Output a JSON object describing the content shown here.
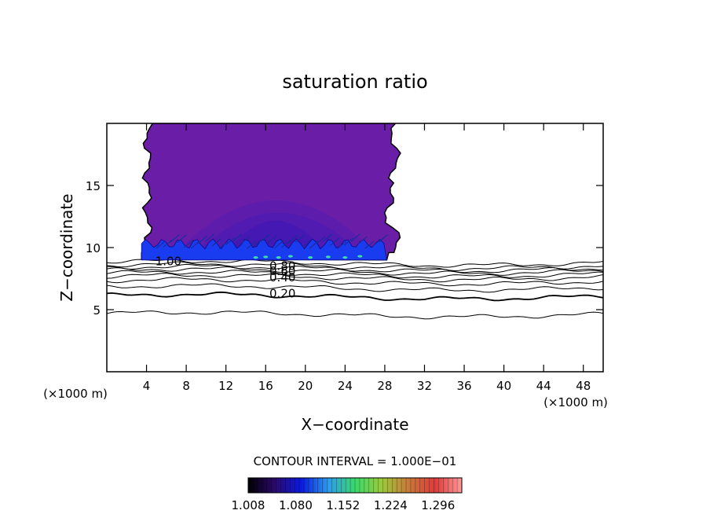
{
  "chart_data": {
    "type": "heatmap",
    "title": "saturation ratio",
    "xlabel": "X−coordinate",
    "ylabel": "Z−coordinate",
    "x_unit_left": "(×1000 m)",
    "x_unit_right": "(×1000 m)",
    "xlim": [
      0,
      50
    ],
    "ylim": [
      0,
      20
    ],
    "x_ticks": [
      4,
      8,
      12,
      16,
      20,
      24,
      28,
      32,
      36,
      40,
      44,
      48
    ],
    "y_ticks": [
      5,
      10,
      15
    ],
    "contour_interval_text": "CONTOUR INTERVAL = 1.000E−01",
    "contour_levels": [
      0.1,
      0.2,
      0.3,
      0.4,
      0.5,
      0.6,
      0.7,
      0.8,
      0.9,
      1.0
    ],
    "contour_labels": [
      {
        "text": "1.00",
        "x": 6.2,
        "y": 8.9
      },
      {
        "text": "0.80",
        "x": 17.7,
        "y": 8.5
      },
      {
        "text": "0.60",
        "x": 17.7,
        "y": 8.1
      },
      {
        "text": "0.40",
        "x": 17.7,
        "y": 7.6
      },
      {
        "text": "0.20",
        "x": 17.7,
        "y": 6.3
      }
    ],
    "plume": {
      "x_range": [
        3.5,
        28.2
      ],
      "z_range": [
        9.0,
        20.0
      ],
      "value_range": [
        1.008,
        1.08
      ]
    },
    "colorbar": {
      "min": 1.008,
      "max": 1.332,
      "tick_labels": [
        "1.008",
        "1.080",
        "1.152",
        "1.224",
        "1.296"
      ],
      "colors": [
        "#000000",
        "#2a0a66",
        "#0a1ae0",
        "#2a9cf0",
        "#3ad86a",
        "#9cc840",
        "#c87a3a",
        "#e03a3a",
        "#ff9a9a"
      ]
    }
  }
}
